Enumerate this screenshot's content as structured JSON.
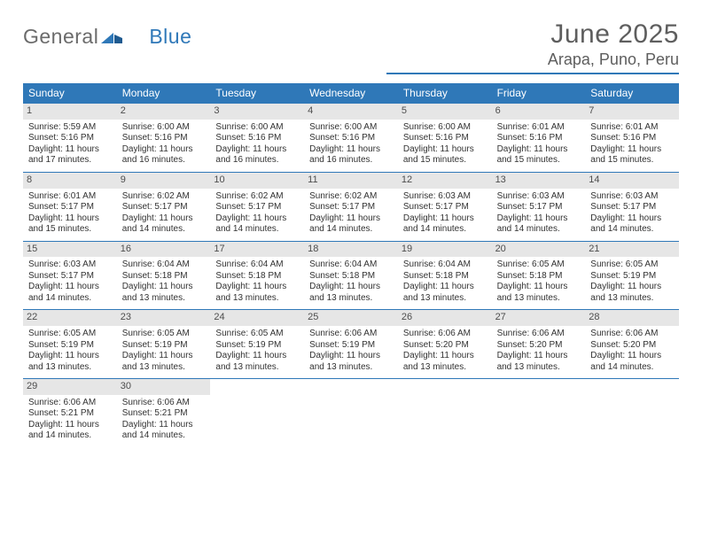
{
  "logo": {
    "word1": "General",
    "word2": "Blue"
  },
  "title": "June 2025",
  "location": "Arapa, Puno, Peru",
  "colors": {
    "header_bg": "#2f78b8",
    "header_text": "#ffffff",
    "rule": "#2f78b8",
    "daybar_bg": "#e6e6e6",
    "text": "#323232",
    "title_text": "#5e5e5e",
    "logo_gray": "#6b6b6b",
    "logo_blue": "#2f78b8",
    "background": "#ffffff"
  },
  "dow": [
    "Sunday",
    "Monday",
    "Tuesday",
    "Wednesday",
    "Thursday",
    "Friday",
    "Saturday"
  ],
  "weeks": [
    [
      {
        "day": "1",
        "sunrise": "Sunrise: 5:59 AM",
        "sunset": "Sunset: 5:16 PM",
        "d1": "Daylight: 11 hours",
        "d2": "and 17 minutes."
      },
      {
        "day": "2",
        "sunrise": "Sunrise: 6:00 AM",
        "sunset": "Sunset: 5:16 PM",
        "d1": "Daylight: 11 hours",
        "d2": "and 16 minutes."
      },
      {
        "day": "3",
        "sunrise": "Sunrise: 6:00 AM",
        "sunset": "Sunset: 5:16 PM",
        "d1": "Daylight: 11 hours",
        "d2": "and 16 minutes."
      },
      {
        "day": "4",
        "sunrise": "Sunrise: 6:00 AM",
        "sunset": "Sunset: 5:16 PM",
        "d1": "Daylight: 11 hours",
        "d2": "and 16 minutes."
      },
      {
        "day": "5",
        "sunrise": "Sunrise: 6:00 AM",
        "sunset": "Sunset: 5:16 PM",
        "d1": "Daylight: 11 hours",
        "d2": "and 15 minutes."
      },
      {
        "day": "6",
        "sunrise": "Sunrise: 6:01 AM",
        "sunset": "Sunset: 5:16 PM",
        "d1": "Daylight: 11 hours",
        "d2": "and 15 minutes."
      },
      {
        "day": "7",
        "sunrise": "Sunrise: 6:01 AM",
        "sunset": "Sunset: 5:16 PM",
        "d1": "Daylight: 11 hours",
        "d2": "and 15 minutes."
      }
    ],
    [
      {
        "day": "8",
        "sunrise": "Sunrise: 6:01 AM",
        "sunset": "Sunset: 5:17 PM",
        "d1": "Daylight: 11 hours",
        "d2": "and 15 minutes."
      },
      {
        "day": "9",
        "sunrise": "Sunrise: 6:02 AM",
        "sunset": "Sunset: 5:17 PM",
        "d1": "Daylight: 11 hours",
        "d2": "and 14 minutes."
      },
      {
        "day": "10",
        "sunrise": "Sunrise: 6:02 AM",
        "sunset": "Sunset: 5:17 PM",
        "d1": "Daylight: 11 hours",
        "d2": "and 14 minutes."
      },
      {
        "day": "11",
        "sunrise": "Sunrise: 6:02 AM",
        "sunset": "Sunset: 5:17 PM",
        "d1": "Daylight: 11 hours",
        "d2": "and 14 minutes."
      },
      {
        "day": "12",
        "sunrise": "Sunrise: 6:03 AM",
        "sunset": "Sunset: 5:17 PM",
        "d1": "Daylight: 11 hours",
        "d2": "and 14 minutes."
      },
      {
        "day": "13",
        "sunrise": "Sunrise: 6:03 AM",
        "sunset": "Sunset: 5:17 PM",
        "d1": "Daylight: 11 hours",
        "d2": "and 14 minutes."
      },
      {
        "day": "14",
        "sunrise": "Sunrise: 6:03 AM",
        "sunset": "Sunset: 5:17 PM",
        "d1": "Daylight: 11 hours",
        "d2": "and 14 minutes."
      }
    ],
    [
      {
        "day": "15",
        "sunrise": "Sunrise: 6:03 AM",
        "sunset": "Sunset: 5:17 PM",
        "d1": "Daylight: 11 hours",
        "d2": "and 14 minutes."
      },
      {
        "day": "16",
        "sunrise": "Sunrise: 6:04 AM",
        "sunset": "Sunset: 5:18 PM",
        "d1": "Daylight: 11 hours",
        "d2": "and 13 minutes."
      },
      {
        "day": "17",
        "sunrise": "Sunrise: 6:04 AM",
        "sunset": "Sunset: 5:18 PM",
        "d1": "Daylight: 11 hours",
        "d2": "and 13 minutes."
      },
      {
        "day": "18",
        "sunrise": "Sunrise: 6:04 AM",
        "sunset": "Sunset: 5:18 PM",
        "d1": "Daylight: 11 hours",
        "d2": "and 13 minutes."
      },
      {
        "day": "19",
        "sunrise": "Sunrise: 6:04 AM",
        "sunset": "Sunset: 5:18 PM",
        "d1": "Daylight: 11 hours",
        "d2": "and 13 minutes."
      },
      {
        "day": "20",
        "sunrise": "Sunrise: 6:05 AM",
        "sunset": "Sunset: 5:18 PM",
        "d1": "Daylight: 11 hours",
        "d2": "and 13 minutes."
      },
      {
        "day": "21",
        "sunrise": "Sunrise: 6:05 AM",
        "sunset": "Sunset: 5:19 PM",
        "d1": "Daylight: 11 hours",
        "d2": "and 13 minutes."
      }
    ],
    [
      {
        "day": "22",
        "sunrise": "Sunrise: 6:05 AM",
        "sunset": "Sunset: 5:19 PM",
        "d1": "Daylight: 11 hours",
        "d2": "and 13 minutes."
      },
      {
        "day": "23",
        "sunrise": "Sunrise: 6:05 AM",
        "sunset": "Sunset: 5:19 PM",
        "d1": "Daylight: 11 hours",
        "d2": "and 13 minutes."
      },
      {
        "day": "24",
        "sunrise": "Sunrise: 6:05 AM",
        "sunset": "Sunset: 5:19 PM",
        "d1": "Daylight: 11 hours",
        "d2": "and 13 minutes."
      },
      {
        "day": "25",
        "sunrise": "Sunrise: 6:06 AM",
        "sunset": "Sunset: 5:19 PM",
        "d1": "Daylight: 11 hours",
        "d2": "and 13 minutes."
      },
      {
        "day": "26",
        "sunrise": "Sunrise: 6:06 AM",
        "sunset": "Sunset: 5:20 PM",
        "d1": "Daylight: 11 hours",
        "d2": "and 13 minutes."
      },
      {
        "day": "27",
        "sunrise": "Sunrise: 6:06 AM",
        "sunset": "Sunset: 5:20 PM",
        "d1": "Daylight: 11 hours",
        "d2": "and 13 minutes."
      },
      {
        "day": "28",
        "sunrise": "Sunrise: 6:06 AM",
        "sunset": "Sunset: 5:20 PM",
        "d1": "Daylight: 11 hours",
        "d2": "and 14 minutes."
      }
    ],
    [
      {
        "day": "29",
        "sunrise": "Sunrise: 6:06 AM",
        "sunset": "Sunset: 5:21 PM",
        "d1": "Daylight: 11 hours",
        "d2": "and 14 minutes."
      },
      {
        "day": "30",
        "sunrise": "Sunrise: 6:06 AM",
        "sunset": "Sunset: 5:21 PM",
        "d1": "Daylight: 11 hours",
        "d2": "and 14 minutes."
      },
      null,
      null,
      null,
      null,
      null
    ]
  ]
}
